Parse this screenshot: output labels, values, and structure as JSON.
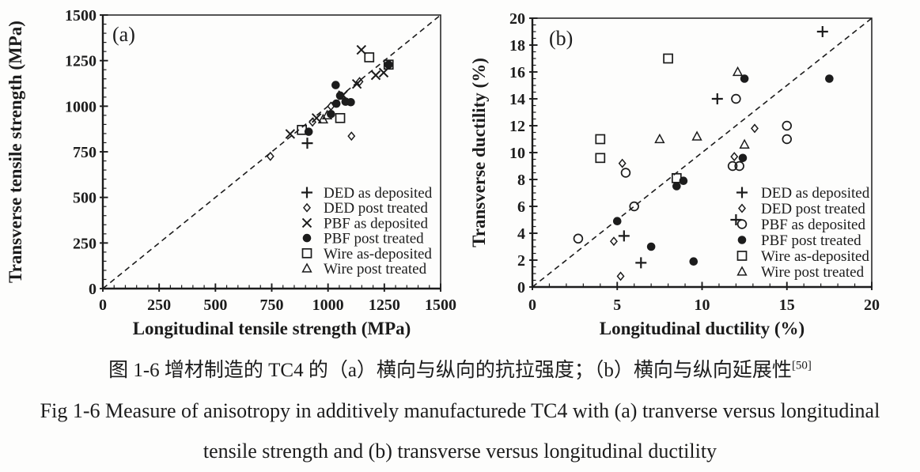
{
  "figure": {
    "captions": {
      "zh": "图 1-6 增材制造的 TC4 的（a）横向与纵向的抗拉强度；（b）横向与纵向延展性",
      "zh_ref": "[50]",
      "en_line1": "Fig 1-6 Measure of anisotropy in additively manufacturede TC4 with (a) tranverse versus longitudinal",
      "en_line2": "tensile strength and (b) transverse versus longitudinal ductility"
    }
  },
  "colors": {
    "ink": "#1c1c1c",
    "background": "#fdfdfc"
  },
  "chart_data": [
    {
      "type": "scatter",
      "panel_label": "(a)",
      "xlabel": "Longitudinal tensile strength (MPa)",
      "ylabel": "Transverse tensile strength (MPa)",
      "xlim": [
        0,
        1500
      ],
      "ylim": [
        0,
        1500
      ],
      "xticks": [
        0,
        250,
        500,
        750,
        1000,
        1250,
        1500
      ],
      "yticks": [
        0,
        250,
        500,
        750,
        1000,
        1250,
        1500
      ],
      "x_minor_step": 50,
      "y_minor_step": 50,
      "grid": false,
      "identity_line": {
        "style": "dashed",
        "from": [
          0,
          0
        ],
        "to": [
          1500,
          1500
        ]
      },
      "legend_position": "inside-bottom-right",
      "series": [
        {
          "name": "DED as deposited",
          "marker": "plus",
          "points": [
            [
              908,
              797
            ]
          ]
        },
        {
          "name": "DED post treated",
          "marker": "diamond-open",
          "points": [
            [
              744,
              725
            ],
            [
              931,
              913
            ],
            [
              1013,
              1000
            ],
            [
              1104,
              836
            ],
            [
              1140,
              1135
            ]
          ]
        },
        {
          "name": "PBF as deposited",
          "marker": "x",
          "points": [
            [
              832,
              848
            ],
            [
              949,
              935
            ],
            [
              1066,
              1060
            ],
            [
              1128,
              1122
            ],
            [
              1148,
              1309
            ],
            [
              1212,
              1170
            ],
            [
              1247,
              1184
            ]
          ]
        },
        {
          "name": "PBF post treated",
          "marker": "circle-filled",
          "points": [
            [
              914,
              860
            ],
            [
              1013,
              957
            ],
            [
              1034,
              1116
            ],
            [
              1037,
              1014
            ],
            [
              1054,
              1058
            ],
            [
              1078,
              1025
            ],
            [
              1101,
              1022
            ],
            [
              1269,
              1228
            ]
          ]
        },
        {
          "name": "Wire as-deposited",
          "marker": "square-open",
          "points": [
            [
              884,
              870
            ],
            [
              1054,
              935
            ],
            [
              1183,
              1268
            ],
            [
              1269,
              1228
            ]
          ]
        },
        {
          "name": "Wire post treated",
          "marker": "triangle-open",
          "points": [
            [
              978,
              928
            ],
            [
              996,
              950
            ]
          ]
        }
      ]
    },
    {
      "type": "scatter",
      "panel_label": "(b)",
      "xlabel": "Longitudinal ductility (%)",
      "ylabel": "Transverse ductility (%)",
      "xlim": [
        0,
        20
      ],
      "ylim": [
        0,
        20
      ],
      "xticks": [
        0,
        5,
        10,
        15,
        20
      ],
      "yticks": [
        0,
        2,
        4,
        6,
        8,
        10,
        12,
        14,
        16,
        18,
        20
      ],
      "x_minor_step": 1,
      "y_minor_step": 0.5,
      "grid": false,
      "identity_line": {
        "style": "dashed",
        "from": [
          0,
          0
        ],
        "to": [
          20,
          20
        ]
      },
      "legend_position": "inside-bottom-right",
      "series": [
        {
          "name": "DED as deposited",
          "marker": "plus",
          "points": [
            [
              5.4,
              3.8
            ],
            [
              6.4,
              1.8
            ],
            [
              10.9,
              14
            ],
            [
              12,
              5
            ],
            [
              17.1,
              19
            ]
          ]
        },
        {
          "name": "DED post treated",
          "marker": "diamond-open",
          "points": [
            [
              4.8,
              3.4
            ],
            [
              5.2,
              0.8
            ],
            [
              5.3,
              9.2
            ],
            [
              11.9,
              9.7
            ],
            [
              13.1,
              11.8
            ]
          ]
        },
        {
          "name": "PBF as deposited",
          "marker": "circle-open",
          "points": [
            [
              2.7,
              3.6
            ],
            [
              5.5,
              8.5
            ],
            [
              6,
              6
            ],
            [
              11.8,
              9
            ],
            [
              12.2,
              9
            ],
            [
              12,
              14
            ],
            [
              15,
              11
            ],
            [
              15,
              12
            ]
          ]
        },
        {
          "name": "PBF post treated",
          "marker": "circle-filled",
          "points": [
            [
              5,
              4.9
            ],
            [
              7,
              3
            ],
            [
              8.5,
              7.5
            ],
            [
              8.9,
              7.9
            ],
            [
              9.5,
              1.9
            ],
            [
              12.4,
              9.6
            ],
            [
              12.5,
              15.5
            ],
            [
              17.5,
              15.5
            ]
          ]
        },
        {
          "name": "Wire as-deposited",
          "marker": "square-open",
          "points": [
            [
              4,
              9.6
            ],
            [
              4,
              11
            ],
            [
              8,
              17
            ],
            [
              8.5,
              8.1
            ]
          ]
        },
        {
          "name": "Wire post treated",
          "marker": "triangle-open",
          "points": [
            [
              7.5,
              11
            ],
            [
              9.7,
              11.2
            ],
            [
              12.1,
              16
            ],
            [
              12.5,
              10.6
            ]
          ]
        }
      ]
    }
  ]
}
